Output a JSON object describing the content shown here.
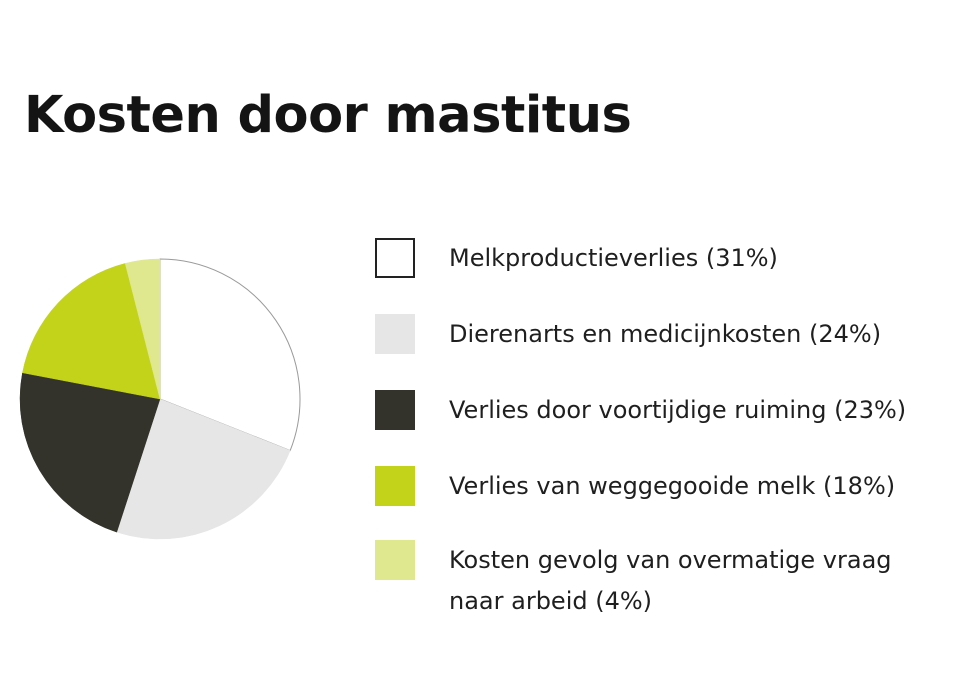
{
  "chart_data": {
    "type": "pie",
    "title": "Kosten door mastitus",
    "slices": [
      {
        "label": "Melkproductieverlies (31%)",
        "value": 31,
        "color": "#ffffff",
        "stroke": "#222222"
      },
      {
        "label": "Dierenarts en medicijnkosten (24%)",
        "value": 24,
        "color": "#e6e6e6",
        "stroke": "none"
      },
      {
        "label": "Verlies door voortijdige ruiming (23%)",
        "value": 23,
        "color": "#33332b",
        "stroke": "none"
      },
      {
        "label": "Verlies van weggegooide melk (18%)",
        "value": 18,
        "color": "#c3d31a",
        "stroke": "none"
      },
      {
        "label": "Kosten gevolg van overmatige vraag\nnaar arbeid (4%)",
        "value": 4,
        "color": "#dfe78f",
        "stroke": "none"
      }
    ],
    "legend_position": "right"
  }
}
